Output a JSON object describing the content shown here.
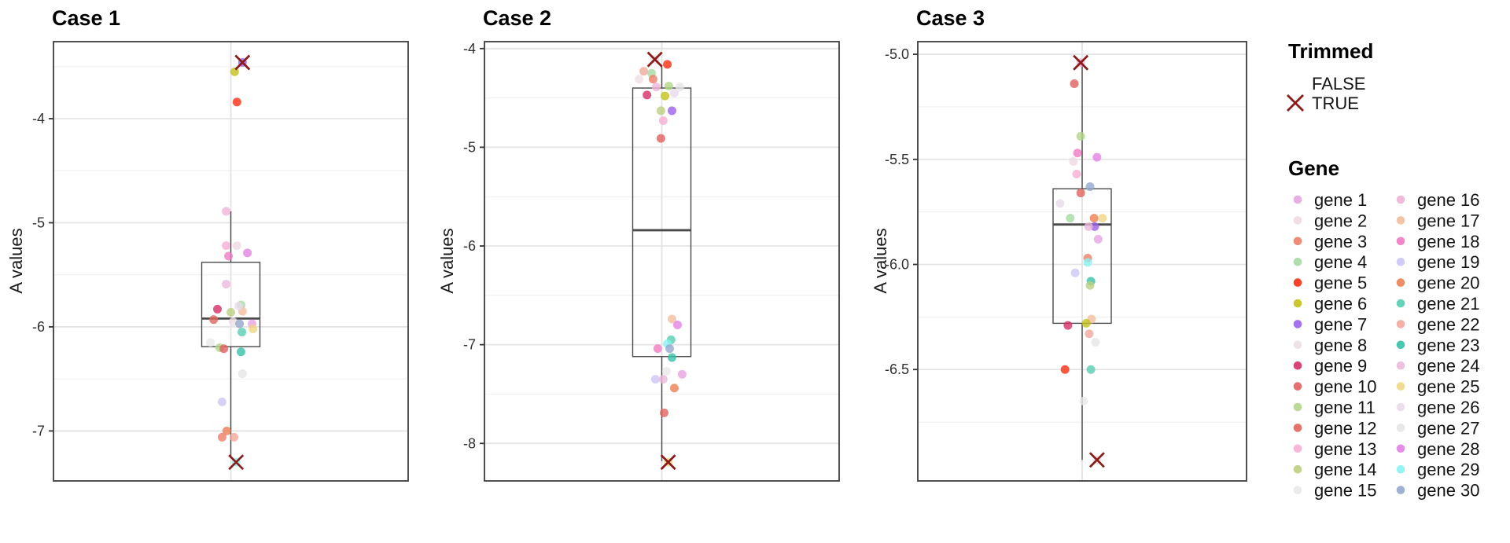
{
  "figure": {
    "y_axis_label": "A values",
    "legend_position": "right",
    "colors": {
      "trim_x": "#8b1a1a",
      "panel_border": "#3c3c3c",
      "grid_major": "#e4e4e4",
      "grid_minor": "#f1f1f1",
      "box_stroke": "#4a4a4a",
      "tick_label": "#303030",
      "legend_text": "#141414"
    },
    "legend": {
      "trimmed": {
        "title": "Trimmed",
        "items": [
          {
            "label": "FALSE",
            "marker": "none"
          },
          {
            "label": "TRUE",
            "marker": "x"
          }
        ]
      },
      "gene": {
        "title": "Gene",
        "items": [
          {
            "label": "gene 1",
            "color": "#e7a4e0"
          },
          {
            "label": "gene 2",
            "color": "#f0d9e3"
          },
          {
            "label": "gene 3",
            "color": "#ec7d66"
          },
          {
            "label": "gene 4",
            "color": "#a6d9a2"
          },
          {
            "label": "gene 5",
            "color": "#fa2e11"
          },
          {
            "label": "gene 6",
            "color": "#c4c21b"
          },
          {
            "label": "gene 7",
            "color": "#9c62ea"
          },
          {
            "label": "gene 8",
            "color": "#ecdfe3"
          },
          {
            "label": "gene 9",
            "color": "#d43064"
          },
          {
            "label": "gene 10",
            "color": "#e25e5e"
          },
          {
            "label": "gene 11",
            "color": "#b2d689"
          },
          {
            "label": "gene 12",
            "color": "#e2635b"
          },
          {
            "label": "gene 13",
            "color": "#f8aed3"
          },
          {
            "label": "gene 14",
            "color": "#bccf82"
          },
          {
            "label": "gene 15",
            "color": "#eae8e8"
          },
          {
            "label": "gene 16",
            "color": "#f0b3d6"
          },
          {
            "label": "gene 17",
            "color": "#f2bf9f"
          },
          {
            "label": "gene 18",
            "color": "#f07cc3"
          },
          {
            "label": "gene 19",
            "color": "#cbc7f4"
          },
          {
            "label": "gene 20",
            "color": "#ec8152"
          },
          {
            "label": "gene 21",
            "color": "#57cdb3"
          },
          {
            "label": "gene 22",
            "color": "#f2a99b"
          },
          {
            "label": "gene 23",
            "color": "#36c1a8"
          },
          {
            "label": "gene 24",
            "color": "#ecb9dc"
          },
          {
            "label": "gene 25",
            "color": "#f0d685"
          },
          {
            "label": "gene 26",
            "color": "#e9dcea"
          },
          {
            "label": "gene 27",
            "color": "#e6e5e5"
          },
          {
            "label": "gene 28",
            "color": "#e282e4"
          },
          {
            "label": "gene 29",
            "color": "#8af2f3"
          },
          {
            "label": "gene 30",
            "color": "#93a8cd"
          }
        ]
      }
    }
  },
  "chart_data": [
    {
      "type": "boxplot",
      "title": "Case 1",
      "ylabel": "A values",
      "ylim": [
        -7.48,
        -3.26
      ],
      "yticks": [
        -4,
        -5,
        -6,
        -7
      ],
      "ytick_labels": [
        "-4",
        "-5",
        "-6",
        "-7"
      ],
      "minor_ticks": [
        -3.5,
        -4.5,
        -5.5,
        -6.5
      ],
      "box": {
        "q1": -6.19,
        "median": -5.92,
        "q3": -5.38,
        "whisker_low": -7.26,
        "whisker_high": -4.89
      },
      "points": [
        {
          "gene": "gene 7",
          "value": -3.46,
          "dx": 0.4,
          "trimmed": true
        },
        {
          "gene": "gene 6",
          "value": -3.55,
          "dx": 0.13
        },
        {
          "gene": "gene 5",
          "value": -3.84,
          "dx": 0.21
        },
        {
          "gene": "gene 16",
          "value": -4.89,
          "dx": -0.16
        },
        {
          "gene": "gene 13",
          "value": -5.22,
          "dx": -0.16
        },
        {
          "gene": "gene 2",
          "value": -5.22,
          "dx": 0.21
        },
        {
          "gene": "gene 18",
          "value": -5.32,
          "dx": -0.08
        },
        {
          "gene": "gene 28",
          "value": -5.29,
          "dx": 0.57
        },
        {
          "gene": "gene 24",
          "value": -5.59,
          "dx": -0.16
        },
        {
          "gene": "gene 9",
          "value": -5.83,
          "dx": -0.46
        },
        {
          "gene": "gene 4",
          "value": -5.79,
          "dx": 0.35
        },
        {
          "gene": "gene 14",
          "value": -5.86,
          "dx": 0.0
        },
        {
          "gene": "gene 17",
          "value": -5.85,
          "dx": 0.4
        },
        {
          "gene": "gene 26",
          "value": -5.8,
          "dx": 0.27
        },
        {
          "gene": "gene 12",
          "value": -5.93,
          "dx": -0.59
        },
        {
          "gene": "gene 8",
          "value": -5.95,
          "dx": 0.08
        },
        {
          "gene": "gene 30",
          "value": -5.97,
          "dx": 0.3
        },
        {
          "gene": "gene 1",
          "value": -5.97,
          "dx": 0.73
        },
        {
          "gene": "gene 25",
          "value": -6.02,
          "dx": 0.76
        },
        {
          "gene": "gene 21",
          "value": -6.05,
          "dx": 0.38
        },
        {
          "gene": "gene 15",
          "value": -6.15,
          "dx": -0.7
        },
        {
          "gene": "gene 11",
          "value": -6.2,
          "dx": -0.38
        },
        {
          "gene": "gene 10",
          "value": -6.21,
          "dx": -0.24
        },
        {
          "gene": "gene 23",
          "value": -6.24,
          "dx": 0.35
        },
        {
          "gene": "gene 27",
          "value": -6.45,
          "dx": 0.4
        },
        {
          "gene": "gene 19",
          "value": -6.72,
          "dx": -0.3
        },
        {
          "gene": "gene 20",
          "value": -7.0,
          "dx": -0.14
        },
        {
          "gene": "gene 3",
          "value": -7.06,
          "dx": -0.3
        },
        {
          "gene": "gene 22",
          "value": -7.06,
          "dx": 0.11
        },
        {
          "gene": "gene 29",
          "value": -7.3,
          "dx": 0.18,
          "trimmed": true
        }
      ]
    },
    {
      "type": "boxplot",
      "title": "Case 2",
      "ylabel": "A values",
      "ylim": [
        -8.38,
        -3.93
      ],
      "yticks": [
        -4,
        -5,
        -6,
        -7,
        -8
      ],
      "ytick_labels": [
        "-4",
        "-5",
        "-6",
        "-7",
        "-8"
      ],
      "minor_ticks": [
        -4.5,
        -5.5,
        -6.5,
        -7.5
      ],
      "box": {
        "q1": -7.12,
        "median": -5.84,
        "q3": -4.4,
        "whisker_low": -8.18,
        "whisker_high": -4.18
      },
      "points": [
        {
          "gene": "gene 2",
          "value": -4.11,
          "dx": -0.24,
          "trimmed": true
        },
        {
          "gene": "gene 5",
          "value": -4.16,
          "dx": 0.19
        },
        {
          "gene": "gene 22",
          "value": -4.23,
          "dx": -0.62
        },
        {
          "gene": "gene 4",
          "value": -4.25,
          "dx": -0.35
        },
        {
          "gene": "gene 8",
          "value": -4.31,
          "dx": -0.78
        },
        {
          "gene": "gene 3",
          "value": -4.31,
          "dx": -0.3
        },
        {
          "gene": "gene 16",
          "value": -4.39,
          "dx": -0.19
        },
        {
          "gene": "gene 11",
          "value": -4.38,
          "dx": 0.24
        },
        {
          "gene": "gene 27",
          "value": -4.39,
          "dx": 0.62
        },
        {
          "gene": "gene 26",
          "value": -4.45,
          "dx": 0.43
        },
        {
          "gene": "gene 9",
          "value": -4.47,
          "dx": -0.51
        },
        {
          "gene": "gene 6",
          "value": -4.48,
          "dx": 0.11
        },
        {
          "gene": "gene 14",
          "value": -4.63,
          "dx": -0.03
        },
        {
          "gene": "gene 7",
          "value": -4.63,
          "dx": 0.35
        },
        {
          "gene": "gene 13",
          "value": -4.73,
          "dx": 0.05
        },
        {
          "gene": "gene 10",
          "value": -4.91,
          "dx": -0.03
        },
        {
          "gene": "gene 17",
          "value": -6.74,
          "dx": 0.35
        },
        {
          "gene": "gene 28",
          "value": -6.8,
          "dx": 0.54
        },
        {
          "gene": "gene 21",
          "value": -6.95,
          "dx": 0.32
        },
        {
          "gene": "gene 29",
          "value": -6.99,
          "dx": 0.19
        },
        {
          "gene": "gene 18",
          "value": -7.04,
          "dx": -0.14
        },
        {
          "gene": "gene 30",
          "value": -7.04,
          "dx": 0.27
        },
        {
          "gene": "gene 23",
          "value": -7.13,
          "dx": 0.35
        },
        {
          "gene": "gene 15",
          "value": -7.27,
          "dx": 0.16
        },
        {
          "gene": "gene 1",
          "value": -7.3,
          "dx": 0.7
        },
        {
          "gene": "gene 19",
          "value": -7.35,
          "dx": -0.22
        },
        {
          "gene": "gene 24",
          "value": -7.35,
          "dx": 0.05
        },
        {
          "gene": "gene 20",
          "value": -7.44,
          "dx": 0.43
        },
        {
          "gene": "gene 12",
          "value": -7.69,
          "dx": 0.08
        },
        {
          "gene": "gene 25",
          "value": -8.19,
          "dx": 0.22,
          "trimmed": true
        }
      ]
    },
    {
      "type": "boxplot",
      "title": "Case 3",
      "ylabel": "A values",
      "ylim": [
        -7.03,
        -4.94
      ],
      "yticks": [
        -5.0,
        -5.5,
        -6.0,
        -6.5
      ],
      "ytick_labels": [
        "-5.0",
        "-5.5",
        "-6.0",
        "-6.5"
      ],
      "minor_ticks": [
        -5.25,
        -5.75,
        -6.25,
        -6.75
      ],
      "box": {
        "q1": -6.28,
        "median": -5.81,
        "q3": -5.64,
        "whisker_low": -6.93,
        "whisker_high": -5.04
      },
      "points": [
        {
          "gene": "gene 16",
          "value": -5.04,
          "dx": -0.05,
          "trimmed": true
        },
        {
          "gene": "gene 10",
          "value": -5.14,
          "dx": -0.27
        },
        {
          "gene": "gene 11",
          "value": -5.39,
          "dx": -0.05
        },
        {
          "gene": "gene 18",
          "value": -5.47,
          "dx": -0.16
        },
        {
          "gene": "gene 2",
          "value": -5.51,
          "dx": -0.3
        },
        {
          "gene": "gene 28",
          "value": -5.49,
          "dx": 0.51
        },
        {
          "gene": "gene 13",
          "value": -5.57,
          "dx": -0.19
        },
        {
          "gene": "gene 30",
          "value": -5.63,
          "dx": 0.27
        },
        {
          "gene": "gene 12",
          "value": -5.66,
          "dx": -0.05
        },
        {
          "gene": "gene 26",
          "value": -5.71,
          "dx": -0.76
        },
        {
          "gene": "gene 4",
          "value": -5.78,
          "dx": -0.41
        },
        {
          "gene": "gene 20",
          "value": -5.78,
          "dx": 0.41
        },
        {
          "gene": "gene 25",
          "value": -5.78,
          "dx": 0.7
        },
        {
          "gene": "gene 7",
          "value": -5.82,
          "dx": 0.43
        },
        {
          "gene": "gene 24",
          "value": -5.82,
          "dx": 0.22
        },
        {
          "gene": "gene 1",
          "value": -5.88,
          "dx": 0.55
        },
        {
          "gene": "gene 3",
          "value": -5.97,
          "dx": 0.19
        },
        {
          "gene": "gene 29",
          "value": -5.99,
          "dx": 0.19
        },
        {
          "gene": "gene 19",
          "value": -6.04,
          "dx": -0.24
        },
        {
          "gene": "gene 23",
          "value": -6.08,
          "dx": 0.3
        },
        {
          "gene": "gene 14",
          "value": -6.1,
          "dx": 0.27
        },
        {
          "gene": "gene 17",
          "value": -6.26,
          "dx": 0.32
        },
        {
          "gene": "gene 6",
          "value": -6.28,
          "dx": 0.14
        },
        {
          "gene": "gene 9",
          "value": -6.29,
          "dx": -0.49
        },
        {
          "gene": "gene 22",
          "value": -6.33,
          "dx": 0.24
        },
        {
          "gene": "gene 27",
          "value": -6.37,
          "dx": 0.46
        },
        {
          "gene": "gene 5",
          "value": -6.5,
          "dx": -0.59
        },
        {
          "gene": "gene 21",
          "value": -6.5,
          "dx": 0.3
        },
        {
          "gene": "gene 15",
          "value": -6.65,
          "dx": 0.05
        },
        {
          "gene": "gene 8",
          "value": -6.93,
          "dx": 0.51,
          "trimmed": true
        }
      ]
    }
  ]
}
